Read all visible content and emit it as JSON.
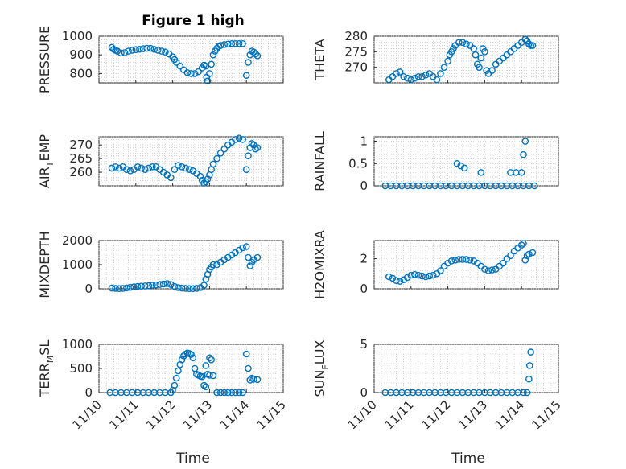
{
  "figure": {
    "title": "Figure 1 high",
    "xlabel": "Time",
    "marker_color": "#0072BD",
    "x_ticks": [
      "11/10",
      "11/11",
      "11/12",
      "11/13",
      "11/14",
      "11/15"
    ]
  },
  "chart_data": [
    {
      "type": "scatter",
      "id": "pressure",
      "ylabel": "PRESSURE",
      "ylim": [
        750,
        1000
      ],
      "yticks": [
        800,
        900,
        1000
      ],
      "ytick_labels": [
        "800",
        "900",
        "1000"
      ],
      "xlim": [
        0,
        5
      ],
      "grid": true,
      "x": [
        0.35,
        0.4,
        0.45,
        0.5,
        0.6,
        0.7,
        0.8,
        0.9,
        1.0,
        1.1,
        1.2,
        1.3,
        1.4,
        1.5,
        1.6,
        1.7,
        1.8,
        1.9,
        2.0,
        2.05,
        2.1,
        2.2,
        2.3,
        2.4,
        2.5,
        2.6,
        2.7,
        2.8,
        2.85,
        2.9,
        2.92,
        2.95,
        3.0,
        3.05,
        3.1,
        3.15,
        3.2,
        3.25,
        3.3,
        3.4,
        3.5,
        3.6,
        3.7,
        3.8,
        3.9,
        4.0,
        4.05,
        4.1,
        4.15,
        4.2,
        4.25,
        4.3
      ],
      "y": [
        940,
        930,
        925,
        920,
        910,
        912,
        920,
        925,
        928,
        930,
        933,
        935,
        935,
        930,
        925,
        920,
        915,
        905,
        890,
        875,
        860,
        840,
        820,
        805,
        800,
        800,
        810,
        830,
        845,
        840,
        780,
        760,
        800,
        850,
        900,
        920,
        935,
        945,
        950,
        955,
        958,
        960,
        960,
        960,
        960,
        790,
        860,
        900,
        920,
        915,
        905,
        895
      ]
    },
    {
      "type": "scatter",
      "id": "theta",
      "ylabel": "THETA",
      "ylim": [
        265,
        280
      ],
      "yticks": [
        270,
        275,
        280
      ],
      "ytick_labels": [
        "270",
        "275",
        "280"
      ],
      "xlim": [
        0,
        5
      ],
      "grid": true,
      "x": [
        0.4,
        0.5,
        0.6,
        0.7,
        0.8,
        0.9,
        1.0,
        1.1,
        1.2,
        1.3,
        1.4,
        1.5,
        1.6,
        1.7,
        1.8,
        1.9,
        2.0,
        2.05,
        2.1,
        2.15,
        2.2,
        2.3,
        2.4,
        2.5,
        2.6,
        2.7,
        2.75,
        2.8,
        2.85,
        2.9,
        2.95,
        3.0,
        3.05,
        3.1,
        3.2,
        3.3,
        3.4,
        3.5,
        3.6,
        3.7,
        3.8,
        3.9,
        4.0,
        4.1,
        4.15,
        4.2,
        4.25,
        4.3
      ],
      "y": [
        266,
        267,
        268,
        268.5,
        267,
        266.5,
        266,
        266.5,
        267,
        267,
        267.5,
        268,
        267,
        266,
        268,
        270,
        272,
        274,
        275,
        276,
        277,
        278,
        278,
        277.5,
        277,
        276,
        274,
        271,
        270,
        273,
        276,
        275,
        269,
        268,
        269,
        271,
        272,
        273,
        274,
        275,
        276,
        277,
        278,
        279,
        278.5,
        277.5,
        277,
        277
      ]
    },
    {
      "type": "scatter",
      "id": "air_temp",
      "ylabel": "AIR_TEMP",
      "ylabel_main": "AIR",
      "ylabel_sub": "T",
      "ylabel_rest": "EMP",
      "ylim": [
        255,
        273
      ],
      "yticks": [
        260,
        265,
        270
      ],
      "ytick_labels": [
        "260",
        "265",
        "270"
      ],
      "xlim": [
        0,
        5
      ],
      "grid": true,
      "x": [
        0.35,
        0.45,
        0.55,
        0.65,
        0.75,
        0.85,
        0.95,
        1.05,
        1.15,
        1.25,
        1.35,
        1.45,
        1.55,
        1.65,
        1.75,
        1.85,
        1.95,
        2.05,
        2.15,
        2.25,
        2.35,
        2.45,
        2.55,
        2.65,
        2.75,
        2.8,
        2.85,
        2.9,
        2.95,
        3.0,
        3.05,
        3.1,
        3.2,
        3.3,
        3.4,
        3.5,
        3.6,
        3.7,
        3.8,
        3.9,
        4.0,
        4.05,
        4.1,
        4.15,
        4.2,
        4.25,
        4.3
      ],
      "y": [
        261.5,
        262,
        261.5,
        262,
        261,
        260.5,
        261,
        262,
        261.5,
        261,
        261.5,
        262,
        262,
        261,
        260,
        259,
        258,
        261,
        262.5,
        262,
        261.5,
        261,
        260.5,
        259.5,
        258.5,
        257,
        256,
        256.5,
        257.5,
        259,
        261,
        263,
        265,
        267,
        268.5,
        270,
        271,
        272,
        272.5,
        272,
        261,
        266,
        269,
        270.5,
        270,
        268.5,
        269
      ]
    },
    {
      "type": "scatter",
      "id": "rainfall",
      "ylabel": "RAINFALL",
      "ylim": [
        0,
        1.1
      ],
      "yticks": [
        0,
        0.5,
        1
      ],
      "ytick_labels": [
        "0",
        "0.5",
        "1"
      ],
      "xlim": [
        0,
        5
      ],
      "grid": true,
      "x": [
        0.3,
        0.45,
        0.6,
        0.75,
        0.9,
        1.05,
        1.2,
        1.35,
        1.5,
        1.65,
        1.8,
        1.95,
        2.1,
        2.25,
        2.4,
        2.55,
        2.7,
        2.85,
        3.0,
        3.15,
        3.3,
        3.45,
        3.6,
        3.75,
        3.9,
        4.05,
        4.2,
        4.35,
        2.25,
        2.35,
        2.45,
        2.9,
        3.7,
        3.85,
        4.0,
        4.05,
        4.1
      ],
      "y": [
        0,
        0,
        0,
        0,
        0,
        0,
        0,
        0,
        0,
        0,
        0,
        0,
        0,
        0,
        0,
        0,
        0,
        0,
        0,
        0,
        0,
        0,
        0,
        0,
        0,
        0,
        0,
        0,
        0.5,
        0.45,
        0.4,
        0.3,
        0.3,
        0.3,
        0.3,
        0.7,
        1.0
      ]
    },
    {
      "type": "scatter",
      "id": "mixdepth",
      "ylabel": "MIXDEPTH",
      "ylim": [
        0,
        2000
      ],
      "yticks": [
        0,
        1000,
        2000
      ],
      "ytick_labels": [
        "0",
        "1000",
        "2000"
      ],
      "xlim": [
        0,
        5
      ],
      "grid": true,
      "x": [
        0.35,
        0.45,
        0.55,
        0.65,
        0.75,
        0.85,
        0.95,
        1.05,
        1.15,
        1.25,
        1.35,
        1.45,
        1.55,
        1.65,
        1.75,
        1.85,
        1.95,
        2.05,
        2.15,
        2.25,
        2.35,
        2.45,
        2.55,
        2.65,
        2.75,
        2.85,
        2.9,
        2.95,
        3.0,
        3.05,
        3.1,
        3.2,
        3.3,
        3.4,
        3.5,
        3.6,
        3.7,
        3.8,
        3.9,
        4.0,
        4.05,
        4.1,
        4.15,
        4.2,
        4.3
      ],
      "y": [
        30,
        20,
        10,
        20,
        40,
        60,
        80,
        100,
        110,
        120,
        130,
        150,
        160,
        180,
        200,
        220,
        180,
        100,
        50,
        30,
        20,
        10,
        10,
        20,
        50,
        150,
        400,
        600,
        800,
        900,
        1000,
        1000,
        1100,
        1200,
        1300,
        1400,
        1500,
        1600,
        1700,
        1750,
        1300,
        950,
        1100,
        1200,
        1300
      ]
    },
    {
      "type": "scatter",
      "id": "h2omixra",
      "ylabel": "H2OMIXRA",
      "ylim": [
        0,
        3.2
      ],
      "yticks": [
        0,
        2
      ],
      "ytick_labels": [
        "0",
        "2"
      ],
      "xlim": [
        0,
        5
      ],
      "grid": true,
      "x": [
        0.4,
        0.5,
        0.6,
        0.7,
        0.8,
        0.9,
        1.0,
        1.1,
        1.2,
        1.3,
        1.4,
        1.5,
        1.6,
        1.7,
        1.8,
        1.9,
        2.0,
        2.1,
        2.2,
        2.3,
        2.4,
        2.5,
        2.6,
        2.7,
        2.8,
        2.9,
        3.0,
        3.1,
        3.2,
        3.3,
        3.4,
        3.5,
        3.6,
        3.7,
        3.8,
        3.9,
        4.0,
        4.05,
        4.1,
        4.15,
        4.2,
        4.3
      ],
      "y": [
        0.8,
        0.7,
        0.55,
        0.5,
        0.6,
        0.75,
        0.9,
        0.95,
        0.9,
        0.85,
        0.8,
        0.85,
        0.9,
        1.0,
        1.2,
        1.5,
        1.7,
        1.85,
        1.9,
        1.95,
        1.95,
        1.95,
        1.9,
        1.85,
        1.7,
        1.5,
        1.3,
        1.2,
        1.25,
        1.3,
        1.5,
        1.7,
        2.0,
        2.2,
        2.5,
        2.7,
        2.9,
        3.0,
        1.9,
        2.2,
        2.3,
        2.4
      ]
    },
    {
      "type": "scatter",
      "id": "terr_msl",
      "ylabel": "TERR_MSL",
      "ylabel_main": "TERR",
      "ylabel_sub": "M",
      "ylabel_rest": "SL",
      "ylim": [
        0,
        1000
      ],
      "yticks": [
        0,
        500,
        1000
      ],
      "ytick_labels": [
        "0",
        "500",
        "1000"
      ],
      "xlim": [
        0,
        5
      ],
      "grid": true,
      "x": [
        0.3,
        0.45,
        0.6,
        0.75,
        0.9,
        1.05,
        1.2,
        1.35,
        1.5,
        1.65,
        1.8,
        1.95,
        2.0,
        2.05,
        2.1,
        2.15,
        2.2,
        2.25,
        2.3,
        2.35,
        2.4,
        2.45,
        2.5,
        2.55,
        2.6,
        2.65,
        2.7,
        2.75,
        2.8,
        2.85,
        2.9,
        2.95,
        3.0,
        3.05,
        3.1,
        3.2,
        3.3,
        3.4,
        3.5,
        3.6,
        3.7,
        3.8,
        3.9,
        4.0,
        4.05,
        4.1,
        4.15,
        4.2,
        4.3,
        2.9,
        3.0
      ],
      "y": [
        0,
        0,
        0,
        0,
        0,
        0,
        0,
        0,
        0,
        0,
        0,
        0,
        50,
        150,
        300,
        450,
        580,
        680,
        760,
        800,
        820,
        810,
        790,
        720,
        500,
        380,
        360,
        340,
        330,
        150,
        120,
        380,
        720,
        680,
        350,
        0,
        0,
        0,
        0,
        0,
        0,
        0,
        0,
        800,
        500,
        260,
        300,
        280,
        270,
        560,
        360
      ]
    },
    {
      "type": "scatter",
      "id": "sun_flux",
      "ylabel": "SUN_FLUX",
      "ylabel_main": "SUN",
      "ylabel_sub": "F",
      "ylabel_rest": "LUX",
      "ylim": [
        0,
        5
      ],
      "yticks": [
        0,
        5
      ],
      "ytick_labels": [
        "0",
        "5"
      ],
      "xlim": [
        0,
        5
      ],
      "grid": true,
      "x": [
        0.3,
        0.45,
        0.6,
        0.75,
        0.9,
        1.05,
        1.2,
        1.35,
        1.5,
        1.65,
        1.8,
        1.95,
        2.1,
        2.25,
        2.4,
        2.55,
        2.7,
        2.85,
        3.0,
        3.15,
        3.3,
        3.45,
        3.6,
        3.75,
        3.9,
        4.05,
        4.15,
        4.2,
        4.22,
        4.25
      ],
      "y": [
        0,
        0,
        0,
        0,
        0,
        0,
        0,
        0,
        0,
        0,
        0,
        0,
        0,
        0,
        0,
        0,
        0,
        0,
        0,
        0,
        0,
        0,
        0,
        0,
        0,
        0,
        0,
        1.4,
        2.8,
        4.2
      ]
    }
  ]
}
